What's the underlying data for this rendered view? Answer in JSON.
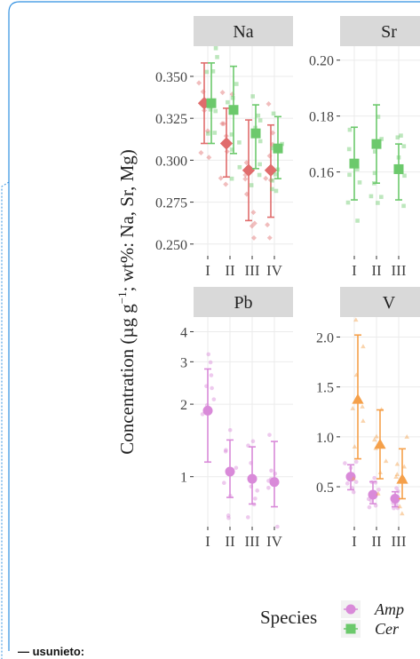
{
  "caption": "— usunieto:",
  "colors": {
    "frame": "#2f8fe0",
    "strip": "#d9d9d9",
    "grid": "#ebebeb",
    "text": "#222222"
  },
  "chart_data": {
    "type": "scatter",
    "ylabel_main": "Concentration (µg g",
    "ylabel_sup": "−1",
    "ylabel_rest": "; wt%: Na, Sr, Mg)",
    "legend": {
      "title": "Species",
      "position": "bottom",
      "items": [
        {
          "label": "Amp",
          "color": "#d98ad9",
          "marker": "circle"
        },
        {
          "label": "Cer",
          "color": "#6cc96c",
          "marker": "square"
        }
      ]
    },
    "panels": [
      {
        "name": "Na",
        "categories": [
          "I",
          "II",
          "III",
          "IV"
        ],
        "ylim": [
          0.243,
          0.368
        ],
        "yticks": [
          0.25,
          0.275,
          0.3,
          0.325,
          0.35
        ],
        "ytick_labels": [
          "0.250",
          "0.275",
          "0.300",
          "0.325",
          "0.350"
        ],
        "series": [
          {
            "color": "#e06c6c",
            "marker": "diamond",
            "means": [
              0.334,
              0.31,
              0.294,
              0.294
            ],
            "lower": [
              0.31,
              0.29,
              0.264,
              0.266
            ],
            "upper": [
              0.358,
              0.331,
              0.324,
              0.321
            ]
          },
          {
            "color": "#6cc96c",
            "marker": "square",
            "means": [
              0.334,
              0.33,
              0.316,
              0.307
            ],
            "lower": [
              0.31,
              0.304,
              0.295,
              0.289
            ],
            "upper": [
              0.358,
              0.356,
              0.333,
              0.326
            ]
          }
        ]
      },
      {
        "name": "Sr",
        "categories": [
          "I",
          "II",
          "III"
        ],
        "ylim": [
          0.13,
          0.205
        ],
        "yticks": [
          0.16,
          0.18,
          0.2
        ],
        "ytick_labels": [
          "0.16",
          "0.18",
          "0.20"
        ],
        "series": [
          {
            "color": "#6cc96c",
            "marker": "square",
            "means": [
              0.163,
              0.17,
              0.161
            ],
            "lower": [
              0.15,
              0.156,
              0.15
            ],
            "upper": [
              0.176,
              0.184,
              0.17
            ]
          }
        ]
      },
      {
        "name": "Pb",
        "categories": [
          "I",
          "II",
          "III",
          "IV"
        ],
        "scale": "log",
        "ylim": [
          0.62,
          4.6
        ],
        "yticks": [
          1,
          2,
          3,
          4
        ],
        "ytick_labels": [
          "1",
          "2",
          "3",
          "4"
        ],
        "series": [
          {
            "color": "#d98ad9",
            "marker": "circle",
            "means": [
              1.88,
              1.05,
              0.98,
              0.95
            ],
            "lower": [
              1.15,
              0.82,
              0.77,
              0.75
            ],
            "upper": [
              2.8,
              1.42,
              1.33,
              1.4
            ]
          }
        ]
      },
      {
        "name": "V",
        "categories": [
          "I",
          "II",
          "III"
        ],
        "ylim": [
          0.1,
          2.2
        ],
        "yticks": [
          0.5,
          1.0,
          1.5,
          2.0
        ],
        "ytick_labels": [
          "0.5",
          "1.0",
          "1.5",
          "2.0"
        ],
        "series": [
          {
            "color": "#d98ad9",
            "marker": "circle",
            "means": [
              0.6,
              0.42,
              0.38
            ],
            "lower": [
              0.47,
              0.33,
              0.3
            ],
            "upper": [
              0.72,
              0.55,
              0.45
            ]
          },
          {
            "color": "#f5a04a",
            "marker": "triangle",
            "means": [
              1.37,
              0.92,
              0.57
            ],
            "lower": [
              0.78,
              0.58,
              0.38
            ],
            "upper": [
              2.02,
              1.27,
              0.88
            ]
          }
        ]
      }
    ]
  }
}
